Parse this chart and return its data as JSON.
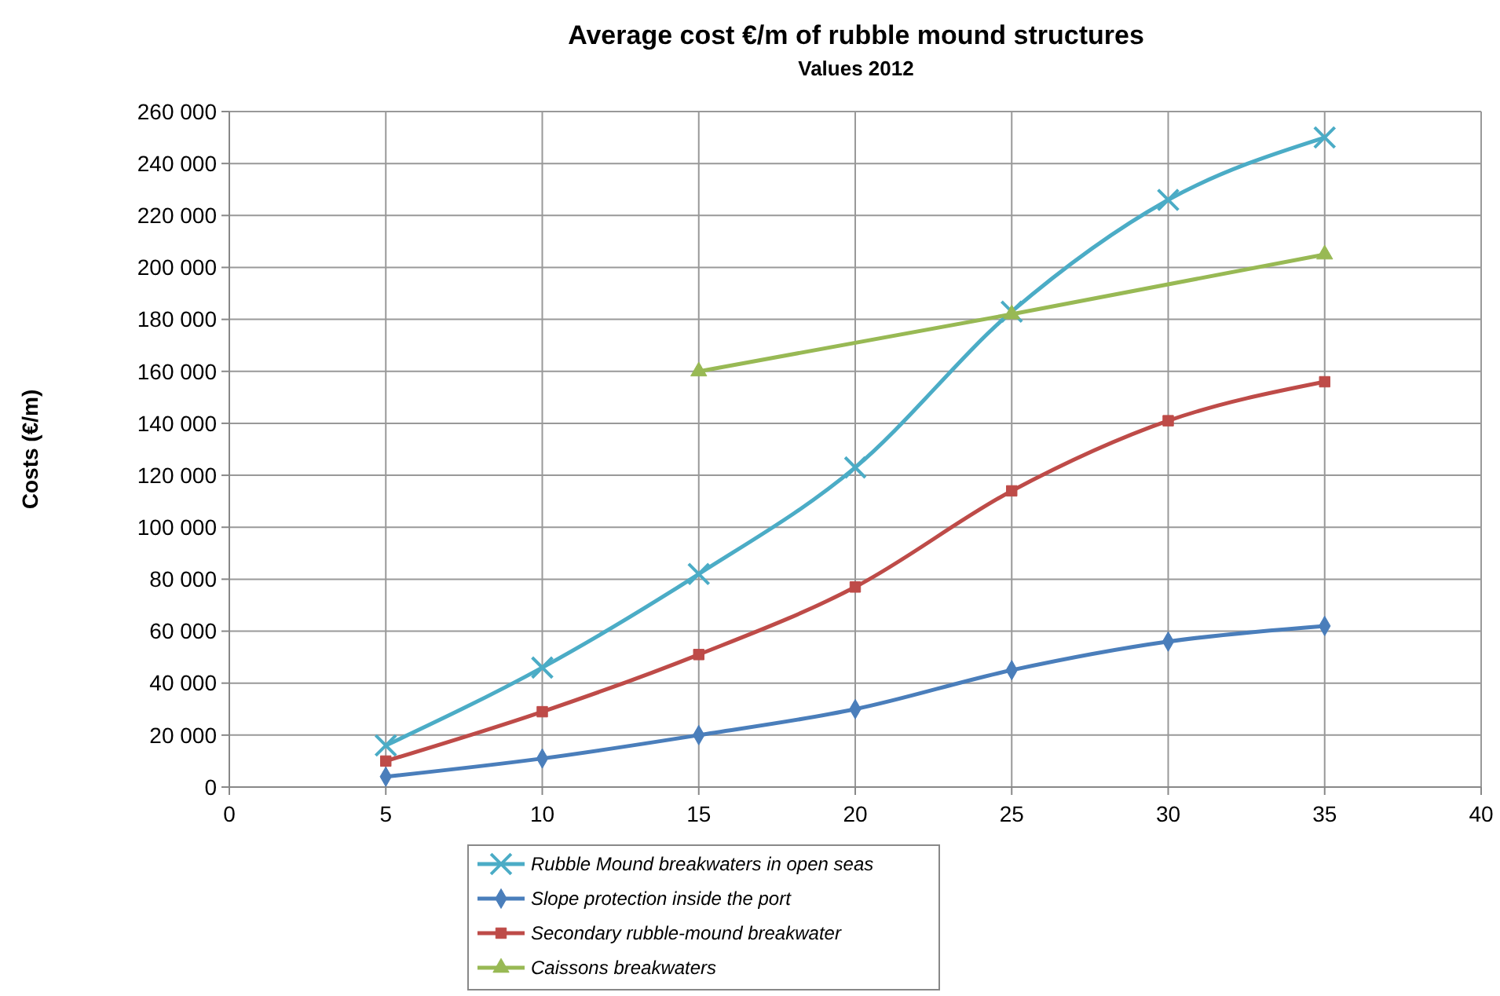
{
  "chart_data": {
    "type": "line",
    "title": "Average cost  €/m of  rubble mound structures",
    "subtitle": "Values 2012",
    "ylabel": "Costs (€/m)",
    "xlim": [
      0,
      40
    ],
    "xticks": [
      0,
      5,
      10,
      15,
      20,
      25,
      30,
      35,
      40
    ],
    "ylim": [
      0,
      260000
    ],
    "yticks": [
      {
        "value": 0,
        "label": "0"
      },
      {
        "value": 20000,
        "label": "20 000"
      },
      {
        "value": 40000,
        "label": "40 000"
      },
      {
        "value": 60000,
        "label": "60 000"
      },
      {
        "value": 80000,
        "label": "80 000"
      },
      {
        "value": 100000,
        "label": "100 000"
      },
      {
        "value": 120000,
        "label": "120 000"
      },
      {
        "value": 140000,
        "label": "140 000"
      },
      {
        "value": 160000,
        "label": "160 000"
      },
      {
        "value": 180000,
        "label": "180 000"
      },
      {
        "value": 200000,
        "label": "200 000"
      },
      {
        "value": 220000,
        "label": "220 000"
      },
      {
        "value": 240000,
        "label": "240 000"
      },
      {
        "value": 260000,
        "label": "260 000"
      }
    ],
    "grid": true,
    "legend": "bottom",
    "series": [
      {
        "name": "Rubble Mound breakwaters in open seas",
        "color": "#4bacc6",
        "marker": "cross",
        "x": [
          5,
          10,
          15,
          20,
          25,
          30,
          35
        ],
        "values": [
          16000,
          46000,
          82000,
          123000,
          183000,
          226000,
          250000
        ]
      },
      {
        "name": "Slope protection inside the port",
        "color": "#4a7ebb",
        "marker": "diamond",
        "x": [
          5,
          10,
          15,
          20,
          25,
          30,
          35
        ],
        "values": [
          4000,
          11000,
          20000,
          30000,
          45000,
          56000,
          62000
        ]
      },
      {
        "name": "Secondary rubble-mound breakwater",
        "color": "#be4b48",
        "marker": "square",
        "x": [
          5,
          10,
          15,
          20,
          25,
          30,
          35
        ],
        "values": [
          10000,
          29000,
          51000,
          77000,
          114000,
          141000,
          156000
        ]
      },
      {
        "name": "Caissons breakwaters",
        "color": "#98b954",
        "marker": "triangle",
        "x": [
          15,
          25,
          35
        ],
        "values": [
          160000,
          182000,
          205000
        ]
      }
    ]
  }
}
